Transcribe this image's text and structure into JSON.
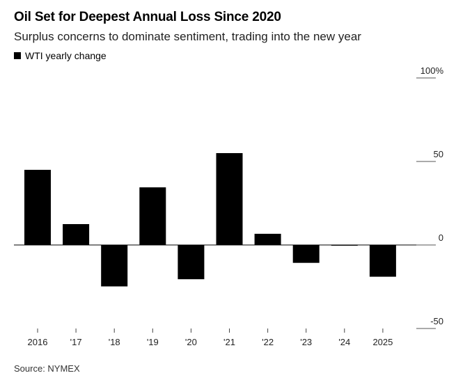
{
  "header": {
    "title": "Oil Set for Deepest Annual Loss Since 2020",
    "subtitle": "Surplus concerns to dominate sentiment, trading into the new year"
  },
  "legend": {
    "label": "WTI yearly change",
    "color": "#000000"
  },
  "footer": {
    "source": "Source: NYMEX"
  },
  "chart_data": {
    "type": "bar",
    "categories": [
      "2016",
      "'17",
      "'18",
      "'19",
      "'20",
      "'21",
      "'22",
      "'23",
      "'24",
      "2025"
    ],
    "series": [
      {
        "name": "WTI yearly change",
        "values": [
          45.0,
          12.5,
          -24.8,
          34.5,
          -20.5,
          55.0,
          6.7,
          -10.7,
          -0.1,
          -19.0
        ],
        "color": "#000000"
      }
    ],
    "y_ticks": [
      {
        "value": 100,
        "label": "100%"
      },
      {
        "value": 50,
        "label": "50"
      },
      {
        "value": 0,
        "label": "0"
      },
      {
        "value": -50,
        "label": "-50"
      }
    ],
    "ylim": [
      -50,
      100
    ],
    "y_axis_side": "right",
    "grid": false,
    "legend_position": "top-left"
  }
}
